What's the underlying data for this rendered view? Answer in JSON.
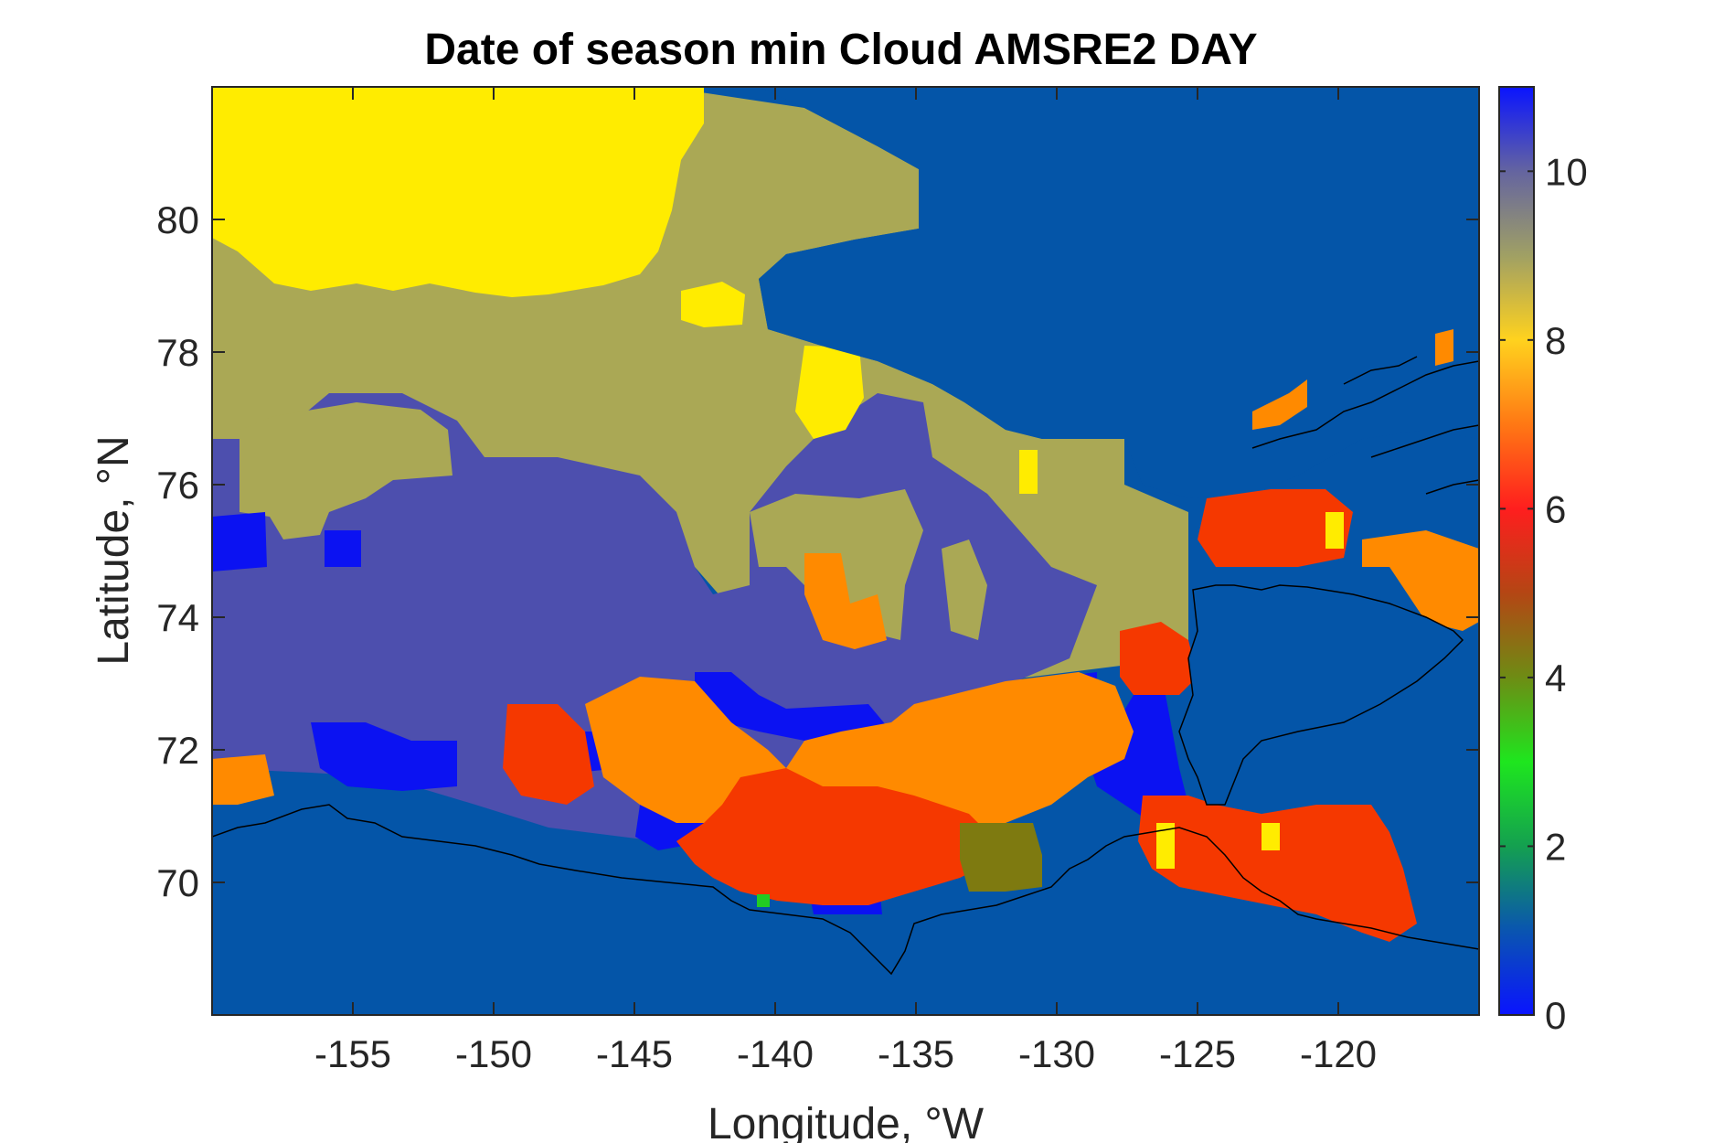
{
  "chart_data": {
    "type": "heatmap",
    "title": "Date of season min Cloud AMSRE2 DAY",
    "xlabel": "Longitude, °W",
    "ylabel": "Latitude, °N",
    "xlim": [
      -160,
      -115
    ],
    "ylim": [
      68,
      82
    ],
    "x_ticks": [
      -155,
      -150,
      -145,
      -140,
      -135,
      -130,
      -125,
      -120
    ],
    "x_tick_labels": [
      "-155",
      "-150",
      "-145",
      "-140",
      "-135",
      "-130",
      "-125",
      "-120"
    ],
    "y_ticks": [
      70,
      72,
      74,
      76,
      78,
      80
    ],
    "y_tick_labels": [
      "70",
      "72",
      "74",
      "76",
      "78",
      "80"
    ],
    "colorbar": {
      "range": [
        0,
        11
      ],
      "ticks": [
        0,
        2,
        4,
        6,
        8,
        10
      ],
      "tick_labels": [
        "0",
        "2",
        "4",
        "6",
        "8",
        "10"
      ],
      "colormap": "jet-like blue-green-red-yellow-blue",
      "stops": [
        {
          "v": 0,
          "color": "#0a14ff"
        },
        {
          "v": 1,
          "color": "#0a55b0"
        },
        {
          "v": 2,
          "color": "#14a050"
        },
        {
          "v": 3,
          "color": "#1ee61e"
        },
        {
          "v": 4,
          "color": "#6e8c14"
        },
        {
          "v": 5,
          "color": "#b44614"
        },
        {
          "v": 6,
          "color": "#ff1e1e"
        },
        {
          "v": 7,
          "color": "#ff7814"
        },
        {
          "v": 8,
          "color": "#ffd21e"
        },
        {
          "v": 9,
          "color": "#a0a064"
        },
        {
          "v": 10,
          "color": "#6464a0"
        },
        {
          "v": 11,
          "color": "#0a14ff"
        }
      ]
    },
    "regions": [
      {
        "name": "open ocean / no change",
        "value": 1,
        "color": "#0455a8"
      },
      {
        "name": "northern yellow zone",
        "value": 8,
        "color": "#ffec00"
      },
      {
        "name": "olive band",
        "value": 9,
        "color": "#aaa855"
      },
      {
        "name": "central purple zone",
        "value": 10,
        "color": "#4d4fae"
      },
      {
        "name": "bright blue patches",
        "value": 0,
        "color": "#0b12f2"
      },
      {
        "name": "orange coastal zone",
        "value": 7,
        "color": "#ff8a00"
      },
      {
        "name": "red coastal zone",
        "value": 6,
        "color": "#f53800"
      },
      {
        "name": "dark olive patch",
        "value": 4,
        "color": "#7e7a10"
      },
      {
        "name": "green pixel",
        "value": 3,
        "color": "#22cc22"
      }
    ]
  }
}
